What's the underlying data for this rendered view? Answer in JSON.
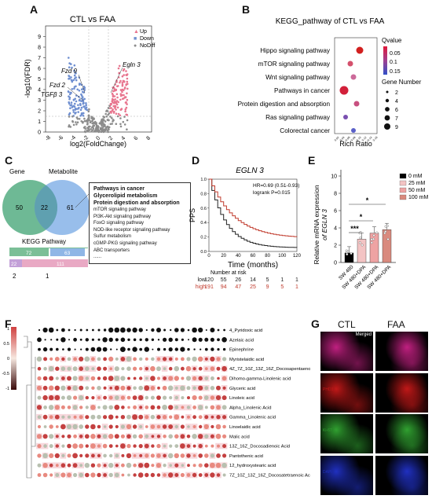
{
  "panels": {
    "A": {
      "letter": "A",
      "title": "CTL vs FAA",
      "xlabel": "log2(FoldChange)",
      "ylabel": "-log10(FDR)",
      "xticks": [
        "-8",
        "-6",
        "-4",
        "-2",
        "0",
        "2",
        "4",
        "6",
        "8"
      ],
      "yticks": [
        "0",
        "1",
        "2",
        "3",
        "4",
        "5",
        "6",
        "7",
        "8",
        "9"
      ],
      "legend": [
        {
          "label": "Up",
          "color": "#e8768f"
        },
        {
          "label": "Down",
          "color": "#6f8fd0"
        },
        {
          "label": "NoDiff",
          "color": "#8c8c8c"
        }
      ],
      "genes": [
        "Fzd 9",
        "Fzd 2",
        "TGFβ 3",
        "Egln 3"
      ]
    },
    "B": {
      "letter": "B",
      "title": "KEGG_pathway of CTL vs FAA",
      "xlabel": "Rich Ratio",
      "xticks": [
        "0.02",
        "0.04",
        "0.06",
        "0.08",
        "0.10",
        "0.12",
        "0.14",
        "0.16"
      ],
      "pathways": [
        "Hippo signaling pathway",
        "mTOR signaling pathway",
        "Wnt signaling pathway",
        "Pathways in cancer",
        "Protein digestion and absorption",
        "Ras signaling pathway",
        "Colorectal cancer"
      ],
      "qvalue_title": "Qvalue",
      "qvalue_ticks": [
        "0.05",
        "0.1",
        "0.15"
      ],
      "gene_number_title": "Gene Number",
      "gene_number_ticks": [
        "2",
        "4",
        "6",
        "7",
        "9"
      ]
    },
    "C": {
      "letter": "C",
      "gene_label": "Gene",
      "metabolite_label": "Metabolite",
      "left_count": "50",
      "overlap_count": "22",
      "right_count": "61",
      "kegg_label": "KEGG Pathway",
      "bar_values": [
        "72",
        "63",
        "22",
        "111"
      ],
      "bar_axis": [
        "2",
        "1"
      ],
      "bold_pathways": [
        "Pathways in cancer",
        "Glycerolipid metabolism",
        "Protein digestion and absorption"
      ],
      "pathways": [
        "mTOR signaling pathway",
        "PI3K-Akt signaling pathway",
        "FoxO signaling pathway",
        "NOD-like receptor signaling pathway",
        "Sulfur metabolism",
        "cGMP-PKG signaling pathway",
        "ABC transporters"
      ],
      "more": "......"
    },
    "D": {
      "letter": "D",
      "title": "EGLN 3",
      "ylabel": "PPS",
      "xlabel": "Time (months)",
      "hr_text": "HR=0.69  (0.51-0.93)",
      "p_text": "logrank P=0.015",
      "xticks": [
        "0",
        "20",
        "40",
        "60",
        "80",
        "100",
        "120"
      ],
      "yticks": [
        "0.0",
        "0.2",
        "0.4",
        "0.6",
        "0.8",
        "1.0"
      ],
      "risk_title": "Number at risk",
      "risk_rows": [
        {
          "label": "low",
          "values": [
            "120",
            "55",
            "26",
            "14",
            "5",
            "1",
            "1"
          ],
          "color": "#222222"
        },
        {
          "label": "high",
          "values": [
            "191",
            "94",
            "47",
            "25",
            "9",
            "5",
            "1"
          ],
          "color": "#c0392b"
        }
      ]
    },
    "E": {
      "letter": "E",
      "ylabel_line1": "Relative mRNA expression",
      "ylabel_line2": "of EGLN 3",
      "yticks": [
        "0",
        "2",
        "4",
        "6",
        "8",
        "10"
      ],
      "legend": [
        {
          "label": "0   mM",
          "color": "#000000"
        },
        {
          "label": "25  mM",
          "color": "#f3c4c4"
        },
        {
          "label": "50  mM",
          "color": "#eea3a3"
        },
        {
          "label": "100 mM",
          "color": "#d98a7e"
        }
      ],
      "categories": [
        "SW 480",
        "SW 480+DPA",
        "SW 480+DPA",
        "SW 480+DPA"
      ],
      "significance": [
        "***",
        "*",
        "*"
      ]
    },
    "F": {
      "letter": "F",
      "scale_ticks": [
        "1",
        "0.5",
        "0",
        "-0.5",
        "-1"
      ],
      "rows": [
        "4_Pyridoxic acid",
        "Azelaic acid",
        "Epinephrine",
        "Myristelaidic acid",
        "4Z_7Z_10Z_13Z_16Z_Docosapentaenoic Acid",
        "Dihomo-gamma-Linolenic acid",
        "Glyceric acid",
        "Linoleic acid",
        "Alpha_Linolenic Acid",
        "Gamma_Linolenic acid",
        "Linoelaidic acid",
        "Malic acid",
        "13Z_16Z_Docosadienoic Acid",
        "Pantothenic acid",
        "12_hydroxystearic acid",
        "7Z_10Z_13Z_16Z_Docosatetraenoic Acid"
      ]
    },
    "G": {
      "letter": "G",
      "col_ctl": "CTL",
      "col_faa": "FAA",
      "rows": [
        {
          "label": "Merged",
          "color": "#c02080"
        },
        {
          "label": "PHD3",
          "color": "#c01818"
        },
        {
          "label": "Ki-67",
          "color": "#30a030"
        },
        {
          "label": "DAPI",
          "color": "#2030c0"
        }
      ]
    }
  }
}
